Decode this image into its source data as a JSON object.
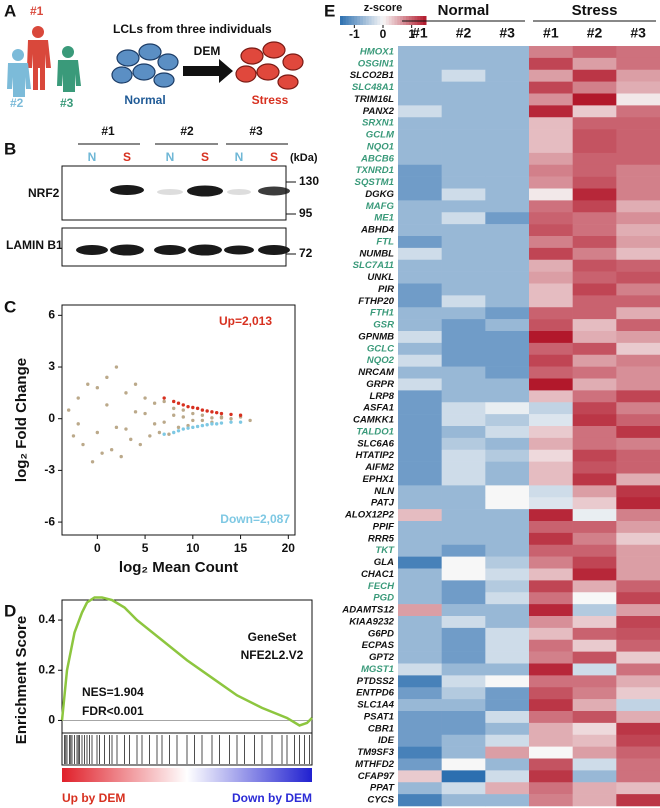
{
  "panel_a": {
    "letter": "A",
    "people": [
      "#1",
      "#2",
      "#3"
    ],
    "title": "LCLs from three individuals",
    "treatment": "DEM",
    "conditions": [
      "Normal",
      "Stress"
    ]
  },
  "panel_b": {
    "letter": "B",
    "samples": [
      "#1",
      "#2",
      "#3"
    ],
    "lanes": [
      "N",
      "S"
    ],
    "unit": "(kDa)",
    "proteins": [
      "NRF2",
      "LAMIN B1"
    ],
    "markers": [
      "130",
      "95",
      "72"
    ]
  },
  "chart_data": [
    {
      "type": "scatter",
      "letter": "C",
      "xlabel": "log₂ Mean Count",
      "ylabel": "log₂ Fold Change",
      "xlim": [
        -3.7,
        20.7
      ],
      "ylim": [
        -6.75,
        6.6
      ],
      "xticks": [
        0,
        5,
        10,
        15,
        20
      ],
      "yticks": [
        6,
        3,
        0,
        -3,
        -6
      ],
      "series": [
        {
          "color": "#bba98a",
          "x": [
            -3,
            -2.5,
            -2,
            -1.5,
            -1,
            -0.5,
            0,
            0.5,
            1,
            1.5,
            2,
            2.5,
            3,
            3.5,
            4,
            4.5,
            5,
            5.5,
            6,
            6.5,
            7,
            7.5,
            8,
            8.5,
            9,
            9.5,
            10,
            11,
            12,
            13,
            14,
            15,
            16,
            -2,
            0,
            2,
            4,
            6,
            8,
            10,
            12,
            1,
            3,
            5,
            7,
            9,
            11,
            13
          ],
          "values": [
            0.5,
            -1,
            1.2,
            -1.5,
            2,
            -2.5,
            1.8,
            -2,
            2.4,
            -1.8,
            3,
            -2.2,
            1.5,
            -1.2,
            2,
            -1.5,
            1.2,
            -1,
            0.9,
            -0.8,
            1,
            -0.9,
            0.6,
            -0.5,
            0.5,
            -0.4,
            0.3,
            0.2,
            -0.2,
            0.1,
            0,
            0.1,
            -0.1,
            -0.3,
            -0.8,
            -0.5,
            0.4,
            -0.3,
            0.2,
            -0.1,
            0.05,
            0.8,
            -0.6,
            0.3,
            -0.2,
            0.1,
            -0.1,
            0.05
          ]
        },
        {
          "color": "#d7301f",
          "x": [
            7,
            8,
            8.5,
            9,
            9.5,
            10,
            10.5,
            11,
            11.5,
            12,
            12.5,
            13,
            14,
            15
          ],
          "values": [
            1.2,
            1.0,
            0.9,
            0.8,
            0.7,
            0.65,
            0.6,
            0.5,
            0.45,
            0.4,
            0.35,
            0.3,
            0.25,
            0.2
          ]
        },
        {
          "color": "#7ec8e3",
          "x": [
            7,
            8,
            8.5,
            9,
            9.5,
            10,
            10.5,
            11,
            11.5,
            12,
            12.5,
            13,
            14,
            15
          ],
          "values": [
            -0.9,
            -0.8,
            -0.7,
            -0.6,
            -0.55,
            -0.5,
            -0.45,
            -0.4,
            -0.35,
            -0.3,
            -0.3,
            -0.25,
            -0.2,
            -0.2
          ]
        }
      ],
      "annotations": [
        {
          "text": "Up=2,013",
          "color": "#d7301f"
        },
        {
          "text": "Down=2,087",
          "color": "#7ec8e3"
        }
      ]
    },
    {
      "type": "line",
      "letter": "D",
      "ylabel": "Enrichment Score",
      "ylim": [
        -0.05,
        0.48
      ],
      "yticks": [
        0.4,
        0.2,
        0
      ],
      "xlim": [
        0,
        1
      ],
      "color": "#8dc63f",
      "x": [
        0,
        0.02,
        0.05,
        0.08,
        0.1,
        0.13,
        0.16,
        0.2,
        0.25,
        0.3,
        0.4,
        0.5,
        0.6,
        0.7,
        0.8,
        0.9,
        0.95,
        0.98,
        1
      ],
      "values": [
        0,
        0.2,
        0.35,
        0.43,
        0.47,
        0.49,
        0.49,
        0.48,
        0.45,
        0.4,
        0.32,
        0.24,
        0.17,
        0.1,
        0.05,
        0.01,
        -0.02,
        -0.01,
        0.01
      ],
      "hits": [
        0.01,
        0.015,
        0.02,
        0.03,
        0.035,
        0.04,
        0.05,
        0.06,
        0.065,
        0.07,
        0.08,
        0.09,
        0.1,
        0.11,
        0.12,
        0.14,
        0.15,
        0.17,
        0.19,
        0.2,
        0.22,
        0.25,
        0.27,
        0.3,
        0.32,
        0.35,
        0.38,
        0.4,
        0.43,
        0.46,
        0.5,
        0.53,
        0.56,
        0.6,
        0.63,
        0.67,
        0.7,
        0.73,
        0.77,
        0.8,
        0.84,
        0.88,
        0.9,
        0.93,
        0.95,
        0.97,
        0.99
      ],
      "annotations": [
        "GeneSet",
        "NFE2L2.V2",
        "NES=1.904",
        "FDR<0.001"
      ],
      "gradient_labels": [
        {
          "text": "Up by DEM",
          "color": "#d7301f"
        },
        {
          "text": "Down by DEM",
          "color": "#2b2bd6"
        }
      ]
    },
    {
      "type": "heatmap",
      "letter": "E",
      "colorbar_title": "z-score",
      "zlim": [
        -1.5,
        1.5
      ],
      "zticks": [
        -1,
        0,
        1
      ],
      "colors": [
        "#2c6fb0",
        "#f7f7f7",
        "#b2182b"
      ],
      "groups": [
        "Normal",
        "Stress"
      ],
      "columns": [
        "#1",
        "#2",
        "#3",
        "#1",
        "#2",
        "#3"
      ],
      "rows": [
        "HMOX1",
        "OSGIN1",
        "SLCO2B1",
        "SLC48A1",
        "TRIM16L",
        "PANX2",
        "SRXN1",
        "GCLM",
        "NQO1",
        "ABCB6",
        "TXNRD1",
        "SQSTM1",
        "DGKG",
        "MAFG",
        "ME1",
        "ABHD4",
        "FTL",
        "NUMBL",
        "SLC7A11",
        "UNKL",
        "PIR",
        "FTHP20",
        "FTH1",
        "GSR",
        "GPNMB",
        "GCLC",
        "NQO2",
        "NRCAM",
        "GRPR",
        "LRP8",
        "ASFA1",
        "CAMKK1",
        "TALDO1",
        "SLC6A6",
        "HTATIP2",
        "AIFM2",
        "EPHX1",
        "NLN",
        "PATJ",
        "ALOX12P2",
        "PPIF",
        "RRR5",
        "TKT",
        "GLA",
        "CHAC1",
        "FECH",
        "PGD",
        "ADAMTS12",
        "KIAA9232",
        "G6PD",
        "ECPAS",
        "GPT2",
        "MGST1",
        "PTDSS2",
        "ENTPD6",
        "SLC1A4",
        "PSAT1",
        "CBR1",
        "IDE",
        "TM9SF3",
        "MTHFD2",
        "CFAP97",
        "PPAT",
        "CYCS"
      ],
      "row_colors": [
        "#3a9a7a",
        "#3a9a7a",
        "#111111",
        "#3a9a7a",
        "#111111",
        "#111111",
        "#3a9a7a",
        "#3a9a7a",
        "#3a9a7a",
        "#3a9a7a",
        "#3a9a7a",
        "#3a9a7a",
        "#111111",
        "#3a9a7a",
        "#3a9a7a",
        "#111111",
        "#3a9a7a",
        "#111111",
        "#3a9a7a",
        "#111111",
        "#111111",
        "#111111",
        "#3a9a7a",
        "#3a9a7a",
        "#111111",
        "#3a9a7a",
        "#3a9a7a",
        "#111111",
        "#111111",
        "#111111",
        "#111111",
        "#111111",
        "#3a9a7a",
        "#111111",
        "#111111",
        "#111111",
        "#111111",
        "#111111",
        "#111111",
        "#111111",
        "#111111",
        "#111111",
        "#3a9a7a",
        "#111111",
        "#111111",
        "#3a9a7a",
        "#3a9a7a",
        "#111111",
        "#111111",
        "#111111",
        "#111111",
        "#111111",
        "#3a9a7a",
        "#111111",
        "#111111",
        "#111111",
        "#111111",
        "#111111",
        "#111111",
        "#111111",
        "#111111",
        "#111111",
        "#111111",
        "#111111"
      ],
      "values": [
        [
          -0.7,
          -0.7,
          -0.7,
          0.8,
          1.0,
          0.9
        ],
        [
          -0.7,
          -0.7,
          -0.7,
          1.2,
          0.6,
          0.9
        ],
        [
          -0.7,
          -0.3,
          -0.7,
          0.6,
          1.3,
          0.6
        ],
        [
          -0.7,
          -0.7,
          -0.7,
          1.2,
          0.8,
          0.5
        ],
        [
          -0.7,
          -0.7,
          -0.7,
          0.7,
          1.5,
          0.1
        ],
        [
          -0.3,
          -0.7,
          -0.7,
          1.4,
          0.3,
          0.9
        ],
        [
          -0.7,
          -0.7,
          -0.7,
          0.4,
          1.0,
          1.0
        ],
        [
          -0.7,
          -0.7,
          -0.7,
          0.4,
          1.1,
          1.0
        ],
        [
          -0.7,
          -0.7,
          -0.7,
          0.4,
          1.1,
          1.0
        ],
        [
          -0.7,
          -0.7,
          -0.7,
          0.6,
          1.0,
          1.0
        ],
        [
          -1.0,
          -0.7,
          -0.7,
          0.8,
          1.0,
          0.8
        ],
        [
          -1.0,
          -0.7,
          -0.7,
          0.7,
          1.1,
          0.8
        ],
        [
          -1.0,
          -0.3,
          -0.7,
          0.1,
          1.4,
          0.8
        ],
        [
          -0.7,
          -0.7,
          -0.7,
          0.9,
          1.2,
          0.5
        ],
        [
          -0.7,
          -0.3,
          -1.0,
          1.0,
          0.9,
          0.7
        ],
        [
          -0.7,
          -0.7,
          -0.7,
          1.1,
          0.9,
          0.5
        ],
        [
          -1.0,
          -0.7,
          -0.7,
          0.8,
          1.1,
          0.6
        ],
        [
          -0.3,
          -0.7,
          -0.7,
          1.2,
          0.8,
          0.4
        ],
        [
          -0.7,
          -0.7,
          -0.7,
          0.5,
          1.1,
          1.0
        ],
        [
          -0.7,
          -0.7,
          -0.7,
          0.6,
          1.0,
          1.1
        ],
        [
          -1.0,
          -0.7,
          -0.7,
          0.4,
          1.2,
          0.8
        ],
        [
          -1.0,
          -0.3,
          -0.7,
          0.4,
          1.0,
          1.0
        ],
        [
          -0.7,
          -0.7,
          -1.0,
          1.0,
          1.0,
          0.5
        ],
        [
          -0.7,
          -1.0,
          -0.7,
          1.1,
          0.4,
          1.0
        ],
        [
          -0.3,
          -1.0,
          -1.0,
          1.5,
          0.5,
          0.6
        ],
        [
          -0.7,
          -1.0,
          -1.0,
          1.0,
          1.1,
          0.3
        ],
        [
          -0.3,
          -1.0,
          -1.0,
          1.2,
          0.6,
          0.8
        ],
        [
          -0.7,
          -0.7,
          -1.0,
          1.0,
          0.9,
          0.7
        ],
        [
          -0.3,
          -0.7,
          -0.7,
          1.5,
          0.5,
          0.7
        ],
        [
          -1.0,
          -0.7,
          -0.7,
          0.4,
          0.9,
          1.2
        ],
        [
          -1.0,
          -0.3,
          -0.1,
          -0.4,
          1.2,
          0.8
        ],
        [
          -1.0,
          -0.3,
          -0.5,
          -0.2,
          1.3,
          1.0
        ],
        [
          -1.0,
          -0.7,
          -0.3,
          0.3,
          0.9,
          1.3
        ],
        [
          -1.0,
          -0.5,
          -0.7,
          0.5,
          0.9,
          0.8
        ],
        [
          -1.0,
          -0.3,
          -0.5,
          0.2,
          1.2,
          1.0
        ],
        [
          -1.0,
          -0.3,
          -0.7,
          0.4,
          1.1,
          1.0
        ],
        [
          -1.0,
          -0.3,
          -0.7,
          0.4,
          1.3,
          0.5
        ],
        [
          -0.7,
          -0.7,
          0.0,
          -0.3,
          0.6,
          1.3
        ],
        [
          -0.7,
          -0.7,
          0.0,
          -0.2,
          0.3,
          1.4
        ],
        [
          0.4,
          -0.7,
          -0.7,
          1.4,
          -0.1,
          0.8
        ],
        [
          -0.7,
          -0.7,
          -0.7,
          1.0,
          1.0,
          0.6
        ],
        [
          -0.7,
          -0.7,
          -0.7,
          1.3,
          0.8,
          0.3
        ],
        [
          -0.7,
          -1.0,
          -0.7,
          1.0,
          1.0,
          0.6
        ],
        [
          -1.3,
          0.0,
          -0.5,
          0.8,
          1.2,
          0.6
        ],
        [
          -0.7,
          0.0,
          -0.3,
          0.4,
          1.4,
          0.6
        ],
        [
          -0.7,
          -1.0,
          -0.5,
          1.2,
          0.5,
          1.0
        ],
        [
          -0.7,
          -1.0,
          -0.3,
          0.9,
          0.0,
          1.2
        ],
        [
          0.6,
          -0.7,
          -0.7,
          1.4,
          -0.5,
          0.6
        ],
        [
          -0.7,
          -0.3,
          -0.7,
          0.7,
          0.3,
          1.2
        ],
        [
          -0.7,
          -1.0,
          -0.3,
          0.4,
          1.0,
          1.1
        ],
        [
          -0.7,
          -1.0,
          -0.3,
          0.9,
          0.3,
          1.0
        ],
        [
          -0.7,
          -1.0,
          -0.3,
          0.8,
          1.1,
          0.3
        ],
        [
          -0.3,
          -0.7,
          -0.7,
          1.4,
          -0.3,
          0.9
        ],
        [
          -1.3,
          -0.3,
          0.0,
          0.9,
          0.9,
          0.5
        ],
        [
          -1.0,
          -0.5,
          -1.0,
          1.1,
          0.8,
          0.3
        ],
        [
          -0.7,
          -0.7,
          -1.0,
          1.3,
          0.5,
          -0.4
        ],
        [
          -1.0,
          -1.0,
          -0.3,
          0.9,
          1.1,
          0.5
        ],
        [
          -1.0,
          -1.0,
          -0.7,
          0.5,
          0.2,
          1.3
        ],
        [
          -1.0,
          -0.7,
          -0.3,
          0.5,
          0.4,
          1.2
        ],
        [
          -1.3,
          -0.7,
          0.6,
          0.0,
          0.6,
          1.0
        ],
        [
          -1.0,
          0.0,
          -0.7,
          1.1,
          -0.3,
          0.9
        ],
        [
          0.3,
          -1.5,
          -0.3,
          1.3,
          -0.7,
          0.9
        ],
        [
          -0.7,
          -0.3,
          0.5,
          0.9,
          0.5,
          0.4
        ],
        [
          -1.3,
          -0.7,
          -0.7,
          0.8,
          0.5,
          1.3
        ]
      ]
    }
  ]
}
